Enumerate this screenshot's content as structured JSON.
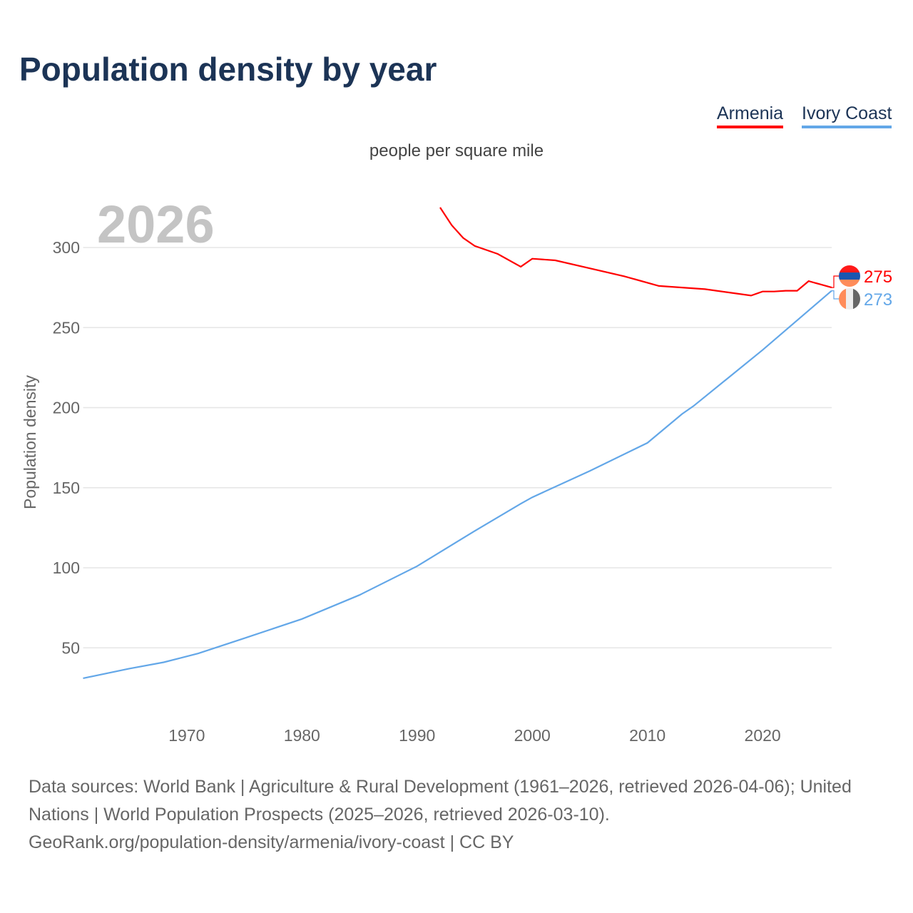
{
  "chart_data": {
    "type": "line",
    "title": "Population density by year",
    "subtitle": "people per square mile",
    "ylabel": "Population density",
    "xlabel": "",
    "current_year_label": "2026",
    "xlim": [
      1961,
      2026
    ],
    "ylim": [
      0,
      330
    ],
    "x_ticks": [
      1970,
      1980,
      1990,
      2000,
      2010,
      2020
    ],
    "y_ticks": [
      50,
      100,
      150,
      200,
      250,
      300
    ],
    "grid": true,
    "legend_placement": "top-right",
    "series": [
      {
        "name": "Armenia",
        "color": "#ff0000",
        "end_label": "275",
        "flag_colors": [
          "#ff1a1a",
          "#1a56b0",
          "#ff8c5a"
        ],
        "points": [
          [
            1992,
            325
          ],
          [
            1993,
            314
          ],
          [
            1994,
            306
          ],
          [
            1995,
            301
          ],
          [
            1997,
            296
          ],
          [
            1999,
            288
          ],
          [
            2000,
            293
          ],
          [
            2002,
            292
          ],
          [
            2005,
            287
          ],
          [
            2008,
            282
          ],
          [
            2011,
            276
          ],
          [
            2013,
            275
          ],
          [
            2015,
            274
          ],
          [
            2017,
            272
          ],
          [
            2019,
            270
          ],
          [
            2020,
            272.5
          ],
          [
            2021,
            272.5
          ],
          [
            2022,
            273
          ],
          [
            2023,
            273
          ],
          [
            2024,
            279
          ],
          [
            2025,
            277
          ],
          [
            2026,
            275
          ]
        ]
      },
      {
        "name": "Ivory Coast",
        "color": "#63a7e8",
        "end_label": "273",
        "flag_colors": [
          "#ff8c5a",
          "#eeeeee",
          "#666666"
        ],
        "points": [
          [
            1961,
            31
          ],
          [
            1965,
            37
          ],
          [
            1968,
            41
          ],
          [
            1971,
            46.5
          ],
          [
            1975,
            56
          ],
          [
            1980,
            68
          ],
          [
            1985,
            83
          ],
          [
            1990,
            101
          ],
          [
            1995,
            123
          ],
          [
            1999,
            140
          ],
          [
            2000,
            144
          ],
          [
            2005,
            160.5
          ],
          [
            2010,
            178
          ],
          [
            2013,
            196
          ],
          [
            2014,
            201
          ],
          [
            2020,
            236
          ],
          [
            2026,
            273
          ]
        ]
      }
    ]
  },
  "source": {
    "line1": "Data sources: World Bank | Agriculture & Rural Development (1961–2026, retrieved 2026-04-06); United Nations | World Population Prospects (2025–2026, retrieved 2026-03-10).",
    "line2": "GeoRank.org/population-density/armenia/ivory-coast | CC BY"
  }
}
